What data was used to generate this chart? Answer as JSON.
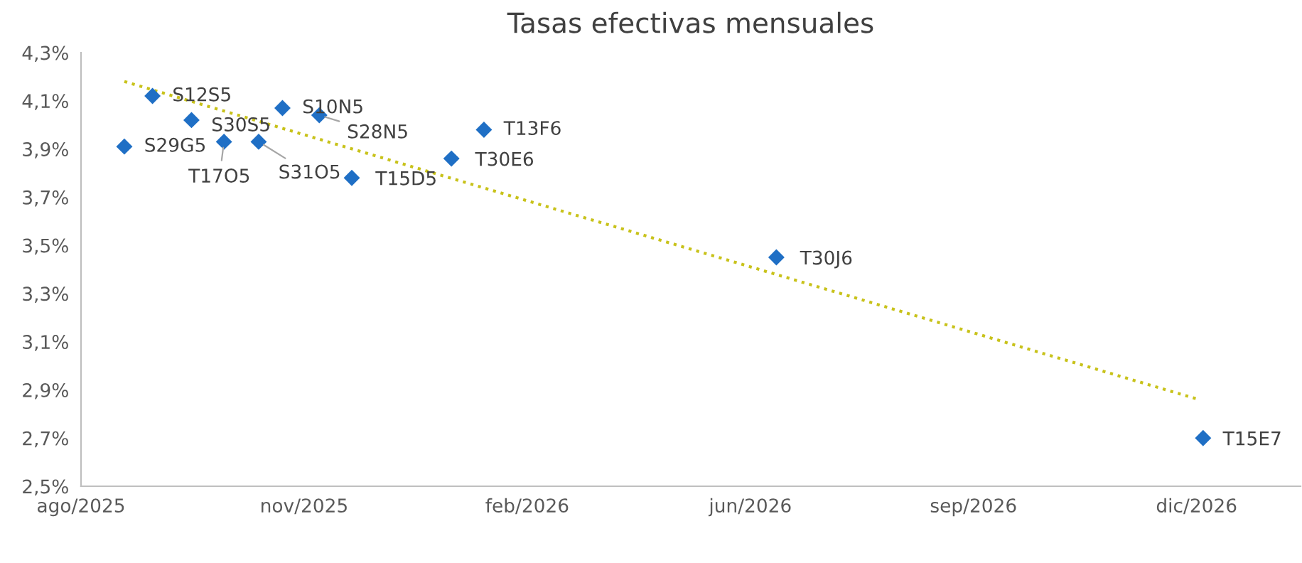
{
  "chart_data": {
    "type": "scatter",
    "title": "Tasas efectivas mensuales",
    "xlim": [
      "2025-08-01",
      "2027-02-15"
    ],
    "xticks": [
      {
        "value": "2025-08-01",
        "label": "ago/2025"
      },
      {
        "value": "2025-11-12",
        "label": "nov/2025"
      },
      {
        "value": "2026-02-23",
        "label": "feb/2026"
      },
      {
        "value": "2026-06-06",
        "label": "jun/2026"
      },
      {
        "value": "2026-09-17",
        "label": "sep/2026"
      },
      {
        "value": "2026-12-29",
        "label": "dic/2026"
      }
    ],
    "ylim": [
      2.5,
      4.3
    ],
    "yticks": [
      {
        "value": 2.5,
        "label": "2,5%"
      },
      {
        "value": 2.7,
        "label": "2,7%"
      },
      {
        "value": 2.9,
        "label": "2,9%"
      },
      {
        "value": 3.1,
        "label": "3,1%"
      },
      {
        "value": 3.3,
        "label": "3,3%"
      },
      {
        "value": 3.5,
        "label": "3,5%"
      },
      {
        "value": 3.7,
        "label": "3,7%"
      },
      {
        "value": 3.9,
        "label": "3,9%"
      },
      {
        "value": 4.1,
        "label": "4,1%"
      },
      {
        "value": 4.3,
        "label": "4,3%"
      }
    ],
    "grid": false,
    "series": [
      {
        "color": "#1f6fc5",
        "marker": "diamond",
        "x": [
          "2025-08-21",
          "2025-09-03",
          "2025-09-21",
          "2025-10-06",
          "2025-10-22",
          "2025-11-02",
          "2025-11-19",
          "2025-12-04",
          "2026-01-19",
          "2026-02-03",
          "2026-06-18",
          "2027-01-01"
        ],
        "values": [
          3.91,
          4.12,
          4.02,
          3.93,
          3.93,
          4.07,
          4.04,
          3.78,
          3.86,
          3.98,
          3.45,
          2.7
        ]
      },
      {
        "type": "line",
        "color": "#c8c21a",
        "line_style": "dotted",
        "marker": "none",
        "x": [
          "2025-08-21",
          "2026-12-30"
        ],
        "values": [
          4.18,
          2.86
        ]
      }
    ],
    "annotations": [
      {
        "text": "S29G5",
        "x": "2025-08-21",
        "y": 3.91
      },
      {
        "text": "S12S5",
        "x": "2025-09-03",
        "y": 4.12
      },
      {
        "text": "S30S5",
        "x": "2025-09-21",
        "y": 4.02
      },
      {
        "text": "T17O5",
        "x": "2025-10-06",
        "y": 3.93
      },
      {
        "text": "S31O5",
        "x": "2025-10-22",
        "y": 3.93
      },
      {
        "text": "S10N5",
        "x": "2025-11-02",
        "y": 4.07
      },
      {
        "text": "S28N5",
        "x": "2025-11-19",
        "y": 4.04
      },
      {
        "text": "T15D5",
        "x": "2025-12-04",
        "y": 3.78
      },
      {
        "text": "T30E6",
        "x": "2026-01-19",
        "y": 3.86
      },
      {
        "text": "T13F6",
        "x": "2026-02-03",
        "y": 3.98
      },
      {
        "text": "T30J6",
        "x": "2026-06-18",
        "y": 3.45
      },
      {
        "text": "T15E7",
        "x": "2027-01-01",
        "y": 2.7
      }
    ]
  }
}
